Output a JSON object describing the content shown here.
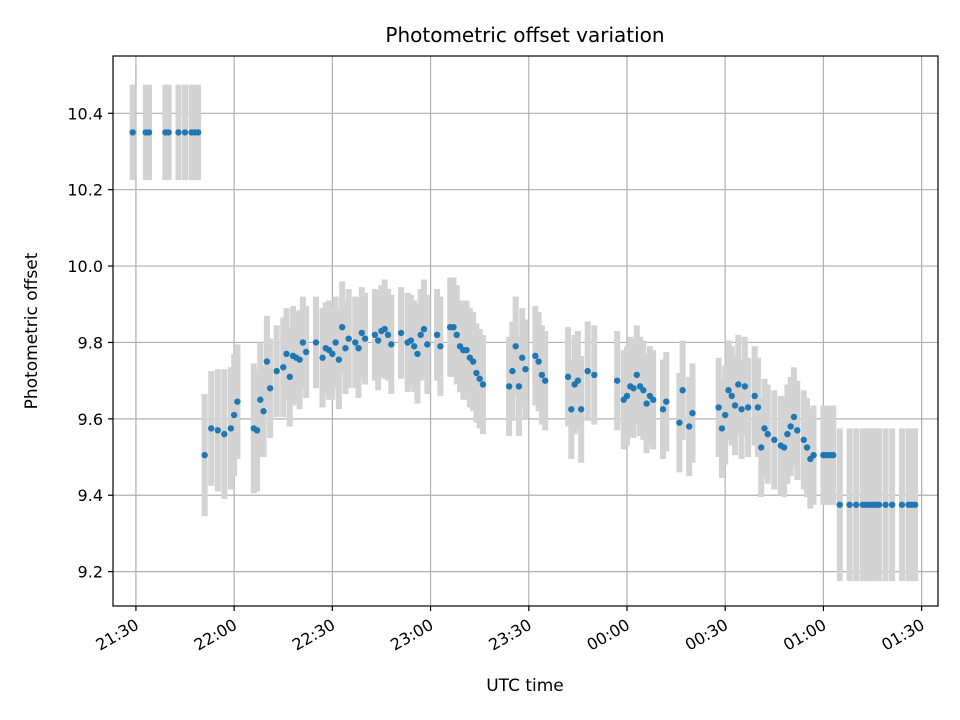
{
  "chart_data": {
    "type": "scatter",
    "title": "Photometric offset variation",
    "xlabel": "UTC time",
    "ylabel": "Photometric offset",
    "x_unit": "UTC time (HH:MM)",
    "xlim": [
      "21:23",
      "01:35"
    ],
    "ylim": [
      9.11,
      10.55
    ],
    "x_ticks": [
      "21:30",
      "22:00",
      "22:30",
      "23:00",
      "23:30",
      "00:00",
      "00:30",
      "01:00",
      "01:30"
    ],
    "y_ticks": [
      9.2,
      9.4,
      9.6,
      9.8,
      10.0,
      10.2,
      10.4
    ],
    "grid": true,
    "error_bar_color": "#d3d3d3",
    "marker_color": "#1f77b4",
    "series": [
      {
        "x": [
          "21:29",
          "21:33",
          "21:34",
          "21:39",
          "21:40",
          "21:43",
          "21:45",
          "21:47",
          "21:48",
          "21:49",
          "21:51",
          "21:53",
          "21:55",
          "21:57",
          "21:59",
          "22:00",
          "22:01",
          "22:06",
          "22:07",
          "22:08",
          "22:09",
          "22:10",
          "22:11",
          "22:13",
          "22:15",
          "22:16",
          "22:17",
          "22:18",
          "22:19",
          "22:20",
          "22:21",
          "22:22",
          "22:25",
          "22:27",
          "22:28",
          "22:29",
          "22:30",
          "22:31",
          "22:32",
          "22:33",
          "22:34",
          "22:35",
          "22:37",
          "22:38",
          "22:39",
          "22:40",
          "22:43",
          "22:44",
          "22:45",
          "22:46",
          "22:47",
          "22:48",
          "22:51",
          "22:53",
          "22:54",
          "22:55",
          "22:56",
          "22:57",
          "22:58",
          "22:59",
          "23:02",
          "23:03",
          "23:06",
          "23:07",
          "23:08",
          "23:09",
          "23:10",
          "23:11",
          "23:12",
          "23:13",
          "23:14",
          "23:15",
          "23:16",
          "23:24",
          "23:25",
          "23:26",
          "23:27",
          "23:28",
          "23:29",
          "23:32",
          "23:33",
          "23:34",
          "23:35",
          "23:42",
          "23:43",
          "23:44",
          "23:45",
          "23:46",
          "23:48",
          "23:50",
          "23:57",
          "23:59",
          "00:00",
          "00:01",
          "00:02",
          "00:03",
          "00:04",
          "00:05",
          "00:06",
          "00:07",
          "00:08",
          "00:11",
          "00:12",
          "00:16",
          "00:17",
          "00:19",
          "00:20",
          "00:28",
          "00:29",
          "00:30",
          "00:31",
          "00:32",
          "00:33",
          "00:34",
          "00:35",
          "00:36",
          "00:37",
          "00:39",
          "00:40",
          "00:41",
          "00:42",
          "00:43",
          "00:45",
          "00:47",
          "00:48",
          "00:49",
          "00:50",
          "00:51",
          "00:52",
          "00:54",
          "00:55",
          "00:56",
          "00:57",
          "01:00",
          "01:01",
          "01:02",
          "01:03",
          "01:05",
          "01:08",
          "01:10",
          "01:12",
          "01:13",
          "01:14",
          "01:15",
          "01:16",
          "01:17",
          "01:19",
          "01:21",
          "01:24",
          "01:26",
          "01:27",
          "01:28"
        ],
        "y": [
          10.35,
          10.35,
          10.35,
          10.35,
          10.35,
          10.35,
          10.35,
          10.35,
          10.35,
          10.35,
          9.505,
          9.575,
          9.57,
          9.56,
          9.575,
          9.61,
          9.645,
          9.575,
          9.57,
          9.65,
          9.62,
          9.75,
          9.68,
          9.725,
          9.735,
          9.77,
          9.71,
          9.765,
          9.76,
          9.755,
          9.8,
          9.775,
          9.8,
          9.76,
          9.785,
          9.78,
          9.77,
          9.8,
          9.755,
          9.84,
          9.785,
          9.81,
          9.8,
          9.785,
          9.825,
          9.81,
          9.82,
          9.805,
          9.83,
          9.835,
          9.82,
          9.795,
          9.825,
          9.8,
          9.805,
          9.79,
          9.77,
          9.82,
          9.835,
          9.795,
          9.82,
          9.79,
          9.84,
          9.84,
          9.82,
          9.79,
          9.78,
          9.78,
          9.76,
          9.75,
          9.72,
          9.705,
          9.69,
          9.685,
          9.725,
          9.79,
          9.685,
          9.76,
          9.73,
          9.765,
          9.75,
          9.715,
          9.7,
          9.71,
          9.625,
          9.69,
          9.7,
          9.625,
          9.725,
          9.715,
          9.7,
          9.65,
          9.66,
          9.685,
          9.68,
          9.715,
          9.685,
          9.675,
          9.64,
          9.66,
          9.65,
          9.625,
          9.645,
          9.59,
          9.675,
          9.58,
          9.615,
          9.63,
          9.575,
          9.61,
          9.675,
          9.66,
          9.635,
          9.69,
          9.625,
          9.685,
          9.63,
          9.66,
          9.63,
          9.525,
          9.575,
          9.56,
          9.545,
          9.53,
          9.525,
          9.56,
          9.58,
          9.605,
          9.57,
          9.545,
          9.525,
          9.495,
          9.505,
          9.505,
          9.505,
          9.505,
          9.505,
          9.375,
          9.375,
          9.375,
          9.375,
          9.375,
          9.375,
          9.375,
          9.375,
          9.375,
          9.375,
          9.375,
          9.375,
          9.375,
          9.375,
          9.375
        ],
        "yerr": [
          0.125,
          0.125,
          0.125,
          0.125,
          0.125,
          0.125,
          0.125,
          0.125,
          0.125,
          0.125,
          0.16,
          0.15,
          0.16,
          0.17,
          0.16,
          0.16,
          0.15,
          0.17,
          0.16,
          0.15,
          0.12,
          0.12,
          0.13,
          0.12,
          0.13,
          0.12,
          0.13,
          0.13,
          0.12,
          0.13,
          0.12,
          0.12,
          0.12,
          0.13,
          0.12,
          0.13,
          0.12,
          0.12,
          0.13,
          0.12,
          0.12,
          0.13,
          0.12,
          0.13,
          0.12,
          0.12,
          0.12,
          0.13,
          0.12,
          0.13,
          0.12,
          0.13,
          0.12,
          0.13,
          0.12,
          0.12,
          0.13,
          0.12,
          0.13,
          0.13,
          0.12,
          0.13,
          0.13,
          0.13,
          0.13,
          0.12,
          0.13,
          0.13,
          0.13,
          0.13,
          0.13,
          0.13,
          0.13,
          0.13,
          0.13,
          0.13,
          0.13,
          0.13,
          0.13,
          0.13,
          0.13,
          0.13,
          0.13,
          0.13,
          0.13,
          0.13,
          0.13,
          0.14,
          0.13,
          0.13,
          0.13,
          0.13,
          0.13,
          0.13,
          0.13,
          0.13,
          0.13,
          0.13,
          0.13,
          0.13,
          0.13,
          0.13,
          0.13,
          0.13,
          0.13,
          0.13,
          0.13,
          0.13,
          0.13,
          0.13,
          0.13,
          0.13,
          0.13,
          0.13,
          0.13,
          0.13,
          0.13,
          0.13,
          0.13,
          0.13,
          0.13,
          0.13,
          0.13,
          0.13,
          0.13,
          0.13,
          0.13,
          0.13,
          0.13,
          0.13,
          0.13,
          0.13,
          0.13,
          0.13,
          0.13,
          0.13,
          0.13,
          0.2,
          0.2,
          0.2,
          0.2,
          0.2,
          0.2,
          0.2,
          0.2,
          0.2,
          0.2,
          0.2,
          0.2,
          0.2,
          0.2,
          0.2
        ]
      }
    ]
  }
}
